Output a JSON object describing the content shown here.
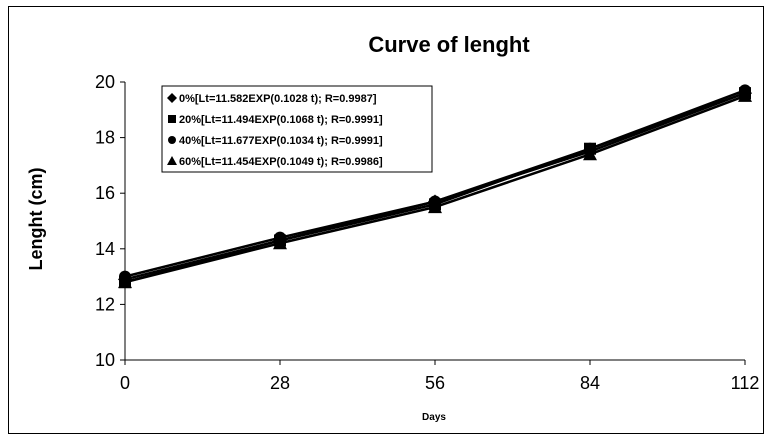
{
  "chart_data": {
    "type": "line",
    "title": "Curve of lenght",
    "xlabel": "Days",
    "ylabel": "Lenght (cm)",
    "x": [
      0,
      28,
      56,
      84,
      112
    ],
    "xlim": [
      0,
      112
    ],
    "ylim": [
      10,
      20
    ],
    "xticks": [
      "0",
      "28",
      "56",
      "84",
      "112"
    ],
    "yticks": [
      "10",
      "12",
      "14",
      "16",
      "18",
      "20"
    ],
    "grid": false,
    "legend_position": "top-left",
    "series": [
      {
        "name": "0%[Lt=11.582EXP(0.1028 t); R=0.9987]",
        "marker": "diamond",
        "values": [
          12.9,
          14.3,
          15.7,
          17.5,
          19.6
        ]
      },
      {
        "name": "20%[Lt=11.494EXP(0.1068 t); R=0.9991]",
        "marker": "square",
        "values": [
          12.8,
          14.3,
          15.6,
          17.6,
          19.6
        ]
      },
      {
        "name": "40%[Lt=11.677EXP(0.1034 t); R=0.9991]",
        "marker": "circle",
        "values": [
          13.0,
          14.4,
          15.7,
          17.6,
          19.7
        ]
      },
      {
        "name": "60%[Lt=11.454EXP(0.1049 t); R=0.9986]",
        "marker": "triangle",
        "values": [
          12.8,
          14.2,
          15.5,
          17.4,
          19.5
        ]
      }
    ]
  }
}
